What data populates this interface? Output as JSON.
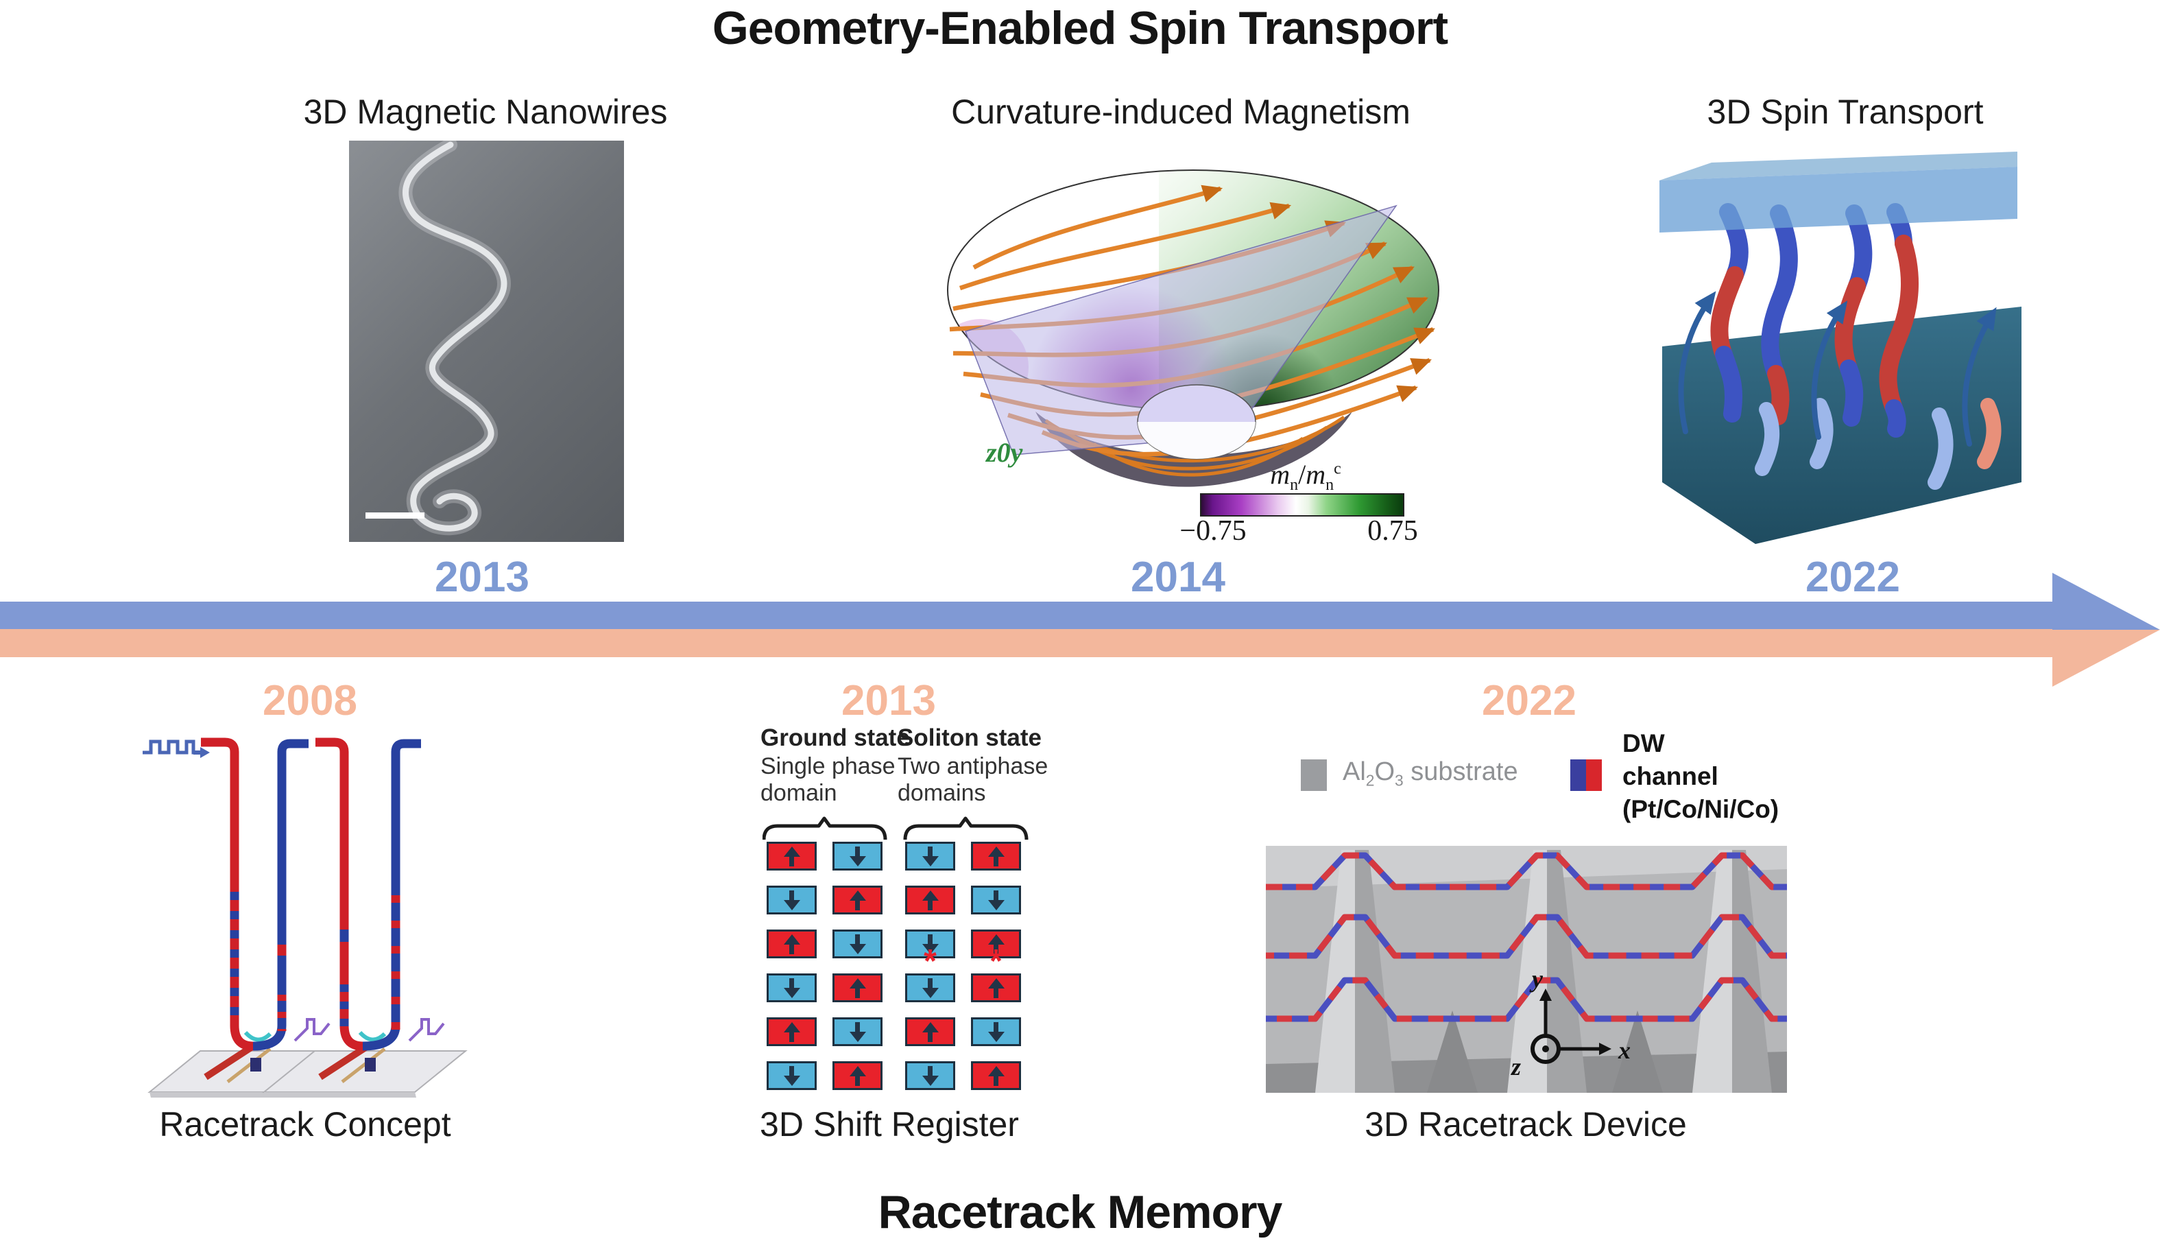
{
  "titles": {
    "top": "Geometry-Enabled Spin Transport",
    "bottom": "Racetrack Memory"
  },
  "top_row": {
    "nanowires": {
      "label": "3D Magnetic Nanowires",
      "year": "2013"
    },
    "curvature": {
      "label": "Curvature-induced Magnetism",
      "year": "2014",
      "plane_label": "z0y",
      "colorbar": {
        "var1": "m",
        "sub1": "n",
        "slash": "/",
        "var2": "m",
        "sub2": "n",
        "sup2": "c",
        "min": "−0.75",
        "max": "0.75",
        "neg_color": "#8b1fae",
        "pos_color": "#2f9a32"
      }
    },
    "spin_transport": {
      "label": "3D Spin Transport",
      "year": "2022"
    }
  },
  "timeline": {
    "direction": "right",
    "top_band_color": "#8099d4",
    "bottom_band_color": "#f3b79c",
    "top_year_color": "#7d9ad3",
    "bottom_year_color": "#f6b89b"
  },
  "bottom_row": {
    "concept": {
      "label": "Racetrack Concept",
      "year": "2008"
    },
    "shift_register": {
      "label": "3D Shift Register",
      "year": "2013",
      "groups": [
        {
          "title": "Ground state",
          "sub1": "Single phase",
          "sub2": "domain"
        },
        {
          "title": "Soliton state",
          "sub1": "Two antiphase",
          "sub2": "domains"
        }
      ],
      "rows": [
        [
          "R",
          "B",
          "B",
          "R"
        ],
        [
          "B",
          "R",
          "R",
          "B"
        ],
        [
          "R",
          "B",
          "B",
          "R"
        ],
        [
          "B",
          "R",
          "B",
          "R"
        ],
        [
          "R",
          "B",
          "R",
          "B"
        ],
        [
          "B",
          "R",
          "B",
          "R"
        ]
      ],
      "cell_meaning": {
        "R": "up-domain",
        "B": "down-domain"
      },
      "cell_colors": {
        "R": "#e8222b",
        "B": "#55b3d9"
      },
      "asterisk_cells": [
        [
          3,
          2
        ],
        [
          3,
          3
        ]
      ],
      "asterisk_char": "*"
    },
    "device": {
      "label": "3D Racetrack Device",
      "year": "2022",
      "legend": {
        "substrate": {
          "al": "Al",
          "s2": "2",
          "o": "O",
          "s3": "3",
          "rest": " substrate"
        },
        "dw": {
          "line1": "DW",
          "line2": "channel",
          "line3": "(Pt/Co/Ni/Co)"
        }
      },
      "axes": {
        "x": "x",
        "y": "y",
        "z": "z"
      }
    }
  }
}
